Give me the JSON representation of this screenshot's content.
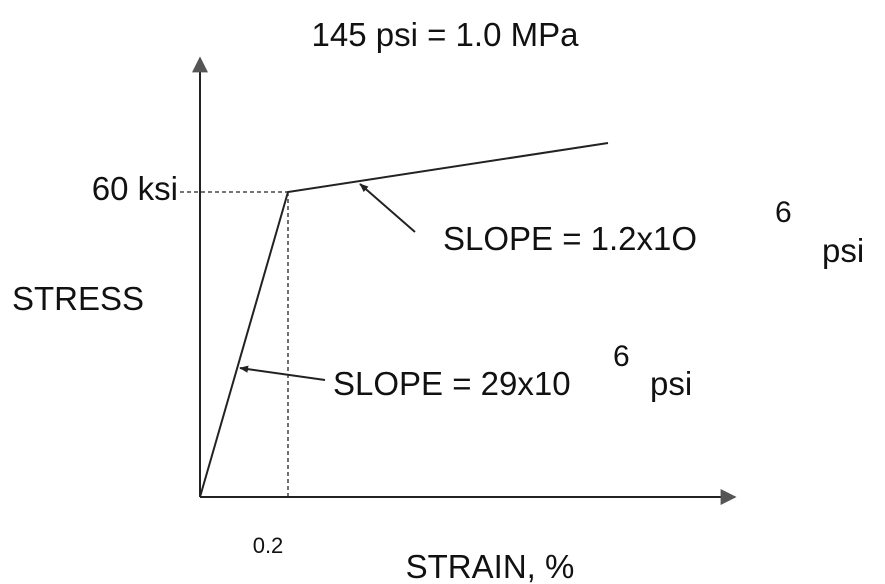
{
  "title": "145 psi = 1.0 MPa",
  "y_label": "STRESS",
  "x_label": "STRAIN, %",
  "y_marker": "60 ksi",
  "x_marker": "0.2",
  "annotations": [
    {
      "text": "SLOPE = 1.2x1O",
      "exponent": "6",
      "unit": "psi"
    },
    {
      "text": "SLOPE = 29x10",
      "exponent": "6",
      "unit": "psi"
    }
  ]
}
